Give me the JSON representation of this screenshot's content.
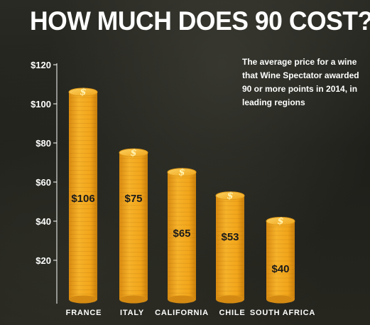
{
  "title": "HOW MUCH DOES 90 COST?",
  "subtitle": "The average price for a wine that Wine Spectator awarded 90 or more points in 2014, in leading regions",
  "colors": {
    "bar": "#f2a51a",
    "bar_dark": "#c97f0c",
    "bar_light": "#f8c040",
    "text": "#ffffff",
    "value_text": "#1a1a1a"
  },
  "chart_data": {
    "type": "bar",
    "title": "HOW MUCH DOES 90 COST?",
    "subtitle": "The average price for a wine that Wine Spectator awarded 90 or more points in 2014, in leading regions",
    "categories": [
      "FRANCE",
      "ITALY",
      "CALIFORNIA",
      "CHILE",
      "SOUTH AFRICA"
    ],
    "values": [
      106,
      75,
      65,
      53,
      40
    ],
    "value_labels": [
      "$106",
      "$75",
      "$65",
      "$53",
      "$40"
    ],
    "ylim": [
      0,
      120
    ],
    "yticks": [
      20,
      40,
      60,
      80,
      100,
      120
    ],
    "ytick_labels": [
      "$20",
      "$40",
      "$60",
      "$80",
      "$100",
      "$120"
    ],
    "xlabel": "",
    "ylabel": "",
    "grid": false,
    "bar_icon": "dollar-coin-icon"
  }
}
